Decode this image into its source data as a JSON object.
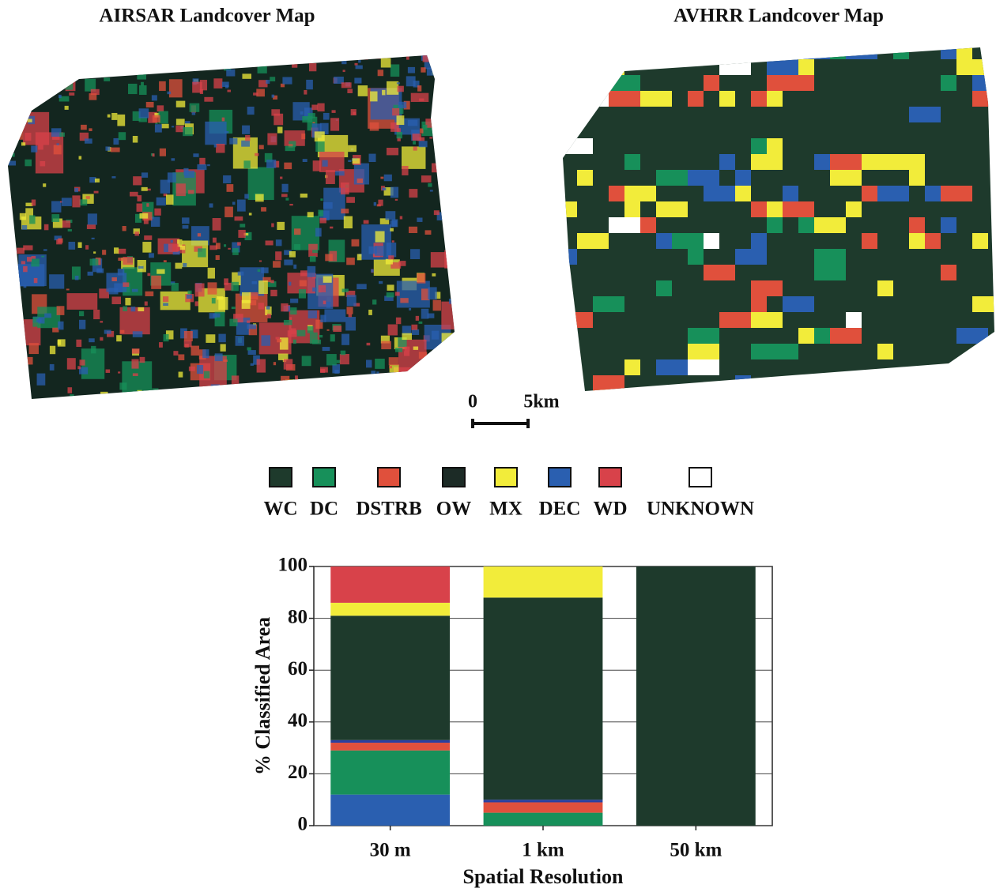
{
  "maps": [
    {
      "title": "AIRSAR Landcover Map"
    },
    {
      "title": "AVHRR Landcover Map"
    }
  ],
  "scale_bar": {
    "start": "0",
    "end": "5km"
  },
  "legend": {
    "items": [
      {
        "label": "WC",
        "color": "#1e3a2c"
      },
      {
        "label": "DC",
        "color": "#17905a"
      },
      {
        "label": "DSTRB",
        "color": "#e0503c"
      },
      {
        "label": "OW",
        "color": "#1c2b26"
      },
      {
        "label": "MX",
        "color": "#f2ec3a"
      },
      {
        "label": "DEC",
        "color": "#2a5fb0"
      },
      {
        "label": "WD",
        "color": "#d8424a"
      },
      {
        "label": "UNKNOWN",
        "color": "#ffffff"
      }
    ]
  },
  "chart_data": {
    "type": "stacked_bar",
    "x_label": "Spatial Resolution",
    "y_label": "% Classified Area",
    "categories": [
      "30 m",
      "1 km",
      "50 km"
    ],
    "series": [
      {
        "color": "#2a5fb0",
        "values": [
          12,
          0,
          0
        ]
      },
      {
        "color": "#17905a",
        "values": [
          17,
          5,
          0
        ]
      },
      {
        "color": "#e0503c",
        "values": [
          3,
          4,
          0
        ]
      },
      {
        "color": "#2a3fa0",
        "values": [
          1,
          1,
          0
        ]
      },
      {
        "color": "#1e3a2c",
        "values": [
          48,
          78,
          100
        ]
      },
      {
        "color": "#f2ec3a",
        "values": [
          5,
          12,
          0
        ]
      },
      {
        "color": "#d8424a",
        "values": [
          14,
          0,
          0
        ]
      }
    ],
    "ylim": [
      0,
      100
    ],
    "yticks": [
      0,
      20,
      40,
      60,
      80,
      100
    ],
    "grid": true
  }
}
